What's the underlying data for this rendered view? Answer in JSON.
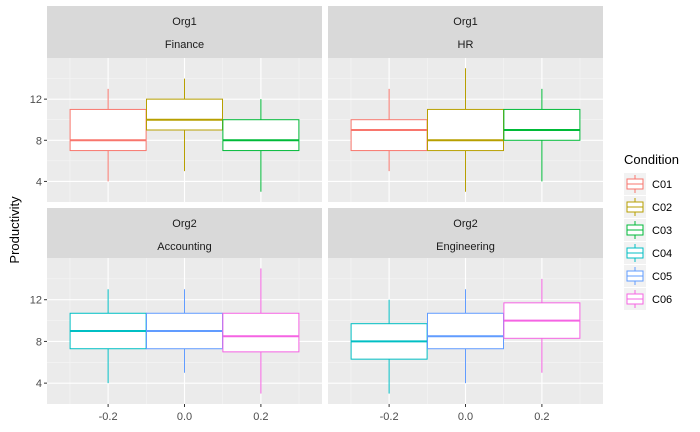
{
  "chart_data": {
    "type": "boxplot",
    "ylabel": "Productivity",
    "xlabel": "",
    "x_ticks": [
      "-0.2",
      "0.0",
      "0.2"
    ],
    "y_ticks": [
      4,
      8,
      12
    ],
    "ylim": [
      2,
      16
    ],
    "xlim": [
      -0.36,
      0.36
    ],
    "grid": true,
    "legend": {
      "title": "Condition",
      "placement": "right",
      "items": [
        {
          "label": "C01",
          "color": "#F8766D"
        },
        {
          "label": "C02",
          "color": "#B79F00"
        },
        {
          "label": "C03",
          "color": "#00BA38"
        },
        {
          "label": "C04",
          "color": "#00BFC4"
        },
        {
          "label": "C05",
          "color": "#619CFF"
        },
        {
          "label": "C06",
          "color": "#F564E3"
        }
      ]
    },
    "panels": [
      {
        "org": "Org1",
        "dept": "Finance",
        "boxes": [
          {
            "condition": "C01",
            "x": -0.2,
            "min": 4,
            "q1": 7,
            "median": 8,
            "q3": 11,
            "max": 13
          },
          {
            "condition": "C02",
            "x": 0.0,
            "min": 5,
            "q1": 9,
            "median": 10,
            "q3": 12,
            "max": 14
          },
          {
            "condition": "C03",
            "x": 0.2,
            "min": 3,
            "q1": 7,
            "median": 8,
            "q3": 10,
            "max": 12
          }
        ]
      },
      {
        "org": "Org1",
        "dept": "HR",
        "boxes": [
          {
            "condition": "C01",
            "x": -0.2,
            "min": 5,
            "q1": 7,
            "median": 9,
            "q3": 10,
            "max": 13
          },
          {
            "condition": "C02",
            "x": 0.0,
            "min": 3,
            "q1": 7,
            "median": 8,
            "q3": 11,
            "max": 15
          },
          {
            "condition": "C03",
            "x": 0.2,
            "min": 4,
            "q1": 8,
            "median": 9,
            "q3": 11,
            "max": 13
          }
        ]
      },
      {
        "org": "Org2",
        "dept": "Accounting",
        "boxes": [
          {
            "condition": "C04",
            "x": -0.2,
            "min": 4,
            "q1": 7.3,
            "median": 9,
            "q3": 10.7,
            "max": 13
          },
          {
            "condition": "C05",
            "x": 0.0,
            "min": 5,
            "q1": 7.3,
            "median": 9,
            "q3": 10.7,
            "max": 13
          },
          {
            "condition": "C06",
            "x": 0.2,
            "min": 3,
            "q1": 7,
            "median": 8.5,
            "q3": 10.7,
            "max": 15
          }
        ]
      },
      {
        "org": "Org2",
        "dept": "Engineering",
        "boxes": [
          {
            "condition": "C04",
            "x": -0.2,
            "min": 3,
            "q1": 6.3,
            "median": 8,
            "q3": 9.7,
            "max": 12
          },
          {
            "condition": "C05",
            "x": 0.0,
            "min": 4,
            "q1": 7.3,
            "median": 8.5,
            "q3": 10.7,
            "max": 13
          },
          {
            "condition": "C06",
            "x": 0.2,
            "min": 5,
            "q1": 8.3,
            "median": 10,
            "q3": 11.7,
            "max": 14
          }
        ]
      }
    ]
  }
}
